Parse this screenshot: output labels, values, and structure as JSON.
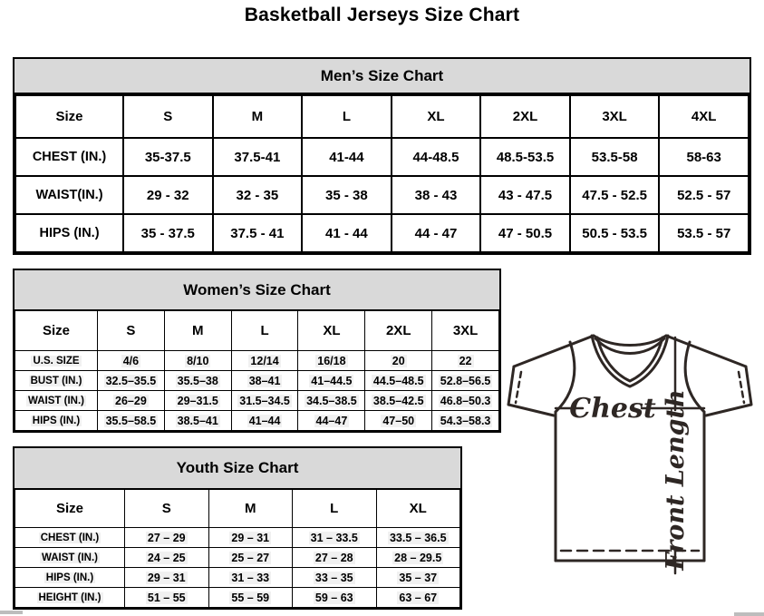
{
  "page": {
    "title": "Basketball Jerseys Size Chart"
  },
  "mens": {
    "title": "Men’s Size Chart",
    "columns": [
      "Size",
      "S",
      "M",
      "L",
      "XL",
      "2XL",
      "3XL",
      "4XL"
    ],
    "rows": [
      {
        "label": "CHEST (IN.)",
        "values": [
          "35-37.5",
          "37.5-41",
          "41-44",
          "44-48.5",
          "48.5-53.5",
          "53.5-58",
          "58-63"
        ]
      },
      {
        "label": "WAIST(IN.)",
        "values": [
          "29 - 32",
          "32 - 35",
          "35 - 38",
          "38 - 43",
          "43 - 47.5",
          "47.5 - 52.5",
          "52.5 - 57"
        ]
      },
      {
        "label": "HIPS (IN.)",
        "values": [
          "35 - 37.5",
          "37.5 - 41",
          "41 - 44",
          "44 - 47",
          "47 - 50.5",
          "50.5 - 53.5",
          "53.5 - 57"
        ]
      }
    ]
  },
  "womens": {
    "title": "Women’s Size Chart",
    "columns": [
      "Size",
      "S",
      "M",
      "L",
      "XL",
      "2XL",
      "3XL"
    ],
    "rows": [
      {
        "label": "U.S. SIZE",
        "values": [
          "4/6",
          "8/10",
          "12/14",
          "16/18",
          "20",
          "22"
        ]
      },
      {
        "label": "BUST (IN.)",
        "values": [
          "32.5–35.5",
          "35.5–38",
          "38–41",
          "41–44.5",
          "44.5–48.5",
          "52.8–56.5"
        ]
      },
      {
        "label": "WAIST (IN.)",
        "values": [
          "26–29",
          "29–31.5",
          "31.5–34.5",
          "34.5–38.5",
          "38.5–42.5",
          "46.8–50.3"
        ]
      },
      {
        "label": "HIPS (IN.)",
        "values": [
          "35.5–58.5",
          "38.5–41",
          "41–44",
          "44–47",
          "47–50",
          "54.3–58.3"
        ]
      }
    ]
  },
  "youth": {
    "title": "Youth Size Chart",
    "columns": [
      "Size",
      "S",
      "M",
      "L",
      "XL"
    ],
    "rows": [
      {
        "label": "CHEST (IN.)",
        "values": [
          "27 – 29",
          "29 – 31",
          "31 – 33.5",
          "33.5 – 36.5"
        ]
      },
      {
        "label": "WAIST (IN.)",
        "values": [
          "24 – 25",
          "25 – 27",
          "27 – 28",
          "28 – 29.5"
        ]
      },
      {
        "label": "HIPS (IN.)",
        "values": [
          "29 – 31",
          "31 – 33",
          "33 – 35",
          "35 – 37"
        ]
      },
      {
        "label": "HEIGHT (IN.)",
        "values": [
          "51 – 55",
          "55 – 59",
          "59 – 63",
          "63 – 67"
        ]
      }
    ]
  },
  "diagram": {
    "chest_label": "Chest",
    "front_length_label": "Front Length"
  },
  "colors": {
    "table_header_bg": "#d9d9d9",
    "border": "#000000",
    "jersey_line": "#2e2724",
    "scrollbar_fragment": "#bdbdbd"
  }
}
